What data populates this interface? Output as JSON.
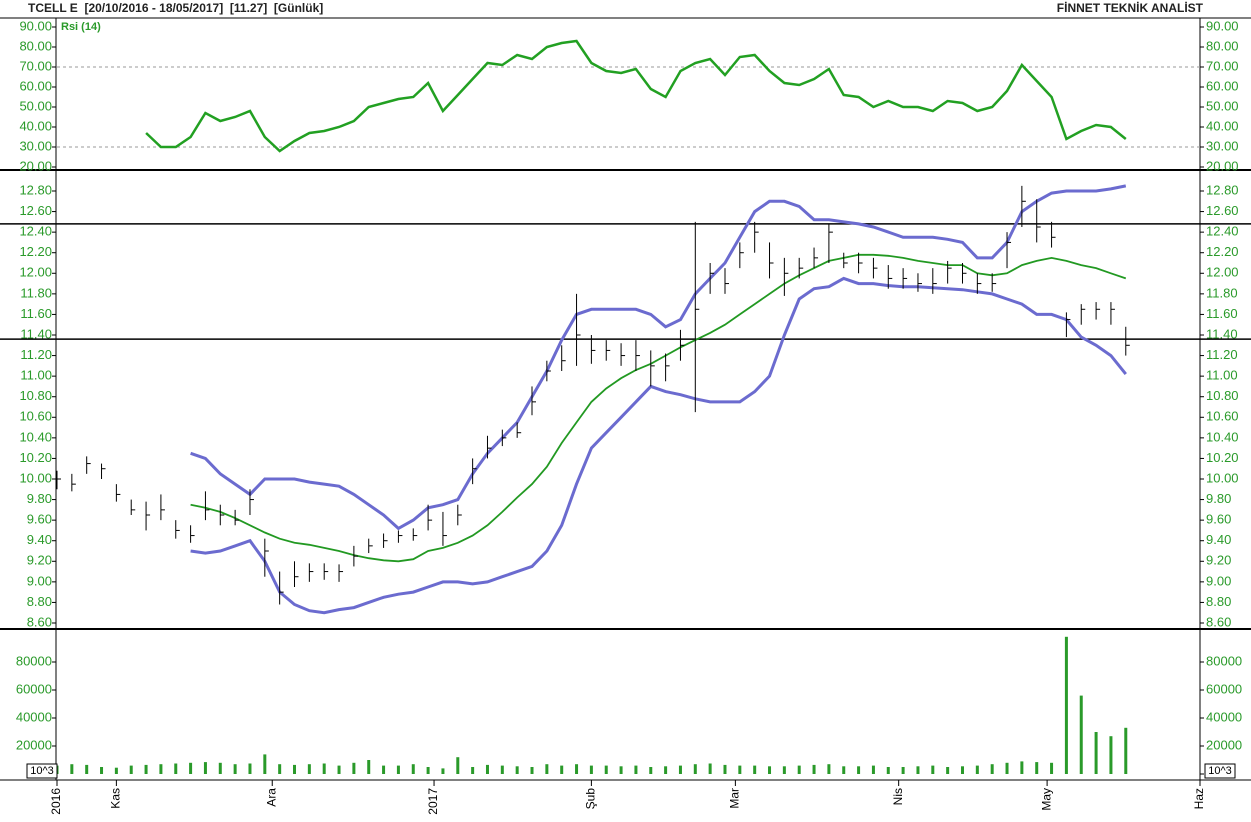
{
  "header": {
    "left": "TCELL E  [20/10/2016 - 18/05/2017]  [11.27]  [Günlük]",
    "right": "FİNNET TEKNİK ANALİST"
  },
  "x_axis": {
    "x": [
      0,
      1,
      2,
      3,
      4,
      5,
      6,
      7,
      8,
      9,
      10,
      11,
      12,
      13,
      14,
      15,
      16,
      17,
      18,
      19,
      20,
      21,
      22,
      23,
      24,
      25,
      26,
      27,
      28,
      29,
      30,
      31,
      32,
      33,
      34,
      35,
      36,
      37,
      38,
      39,
      40,
      41,
      42,
      43,
      44,
      45,
      46,
      47,
      48,
      49,
      50,
      51,
      52,
      53,
      54,
      55,
      56,
      57,
      58,
      59,
      60,
      61,
      62,
      63,
      64,
      65,
      66,
      67,
      68,
      69,
      70,
      71,
      72
    ],
    "xlim": [
      0,
      77
    ],
    "xticks": [
      {
        "value": 0,
        "label": "2016"
      },
      {
        "value": 4,
        "label": "Kas"
      },
      {
        "value": 14.5,
        "label": "Ara"
      },
      {
        "value": 25.4,
        "label": "2017"
      },
      {
        "value": 36,
        "label": "Şub"
      },
      {
        "value": 45.7,
        "label": "Mar"
      },
      {
        "value": 56.7,
        "label": "Nis"
      },
      {
        "value": 66.7,
        "label": "May"
      },
      {
        "value": 77,
        "label": "Haz"
      }
    ]
  },
  "chart_data": [
    {
      "type": "line",
      "label": "Rsi (14)",
      "color": "#22a022",
      "ylim": [
        20,
        90
      ],
      "yticks": [
        {
          "value": 20,
          "label": "20.00"
        },
        {
          "value": 30,
          "label": "30.00"
        },
        {
          "value": 40,
          "label": "40.00"
        },
        {
          "value": 50,
          "label": "50.00"
        },
        {
          "value": 60,
          "label": "60.00"
        },
        {
          "value": 70,
          "label": "70.00"
        },
        {
          "value": 80,
          "label": "80.00"
        },
        {
          "value": 90,
          "label": "90.00"
        }
      ],
      "dashed_levels": [
        30,
        70
      ],
      "values": [
        null,
        null,
        null,
        null,
        null,
        null,
        37,
        30,
        30,
        35,
        47,
        43,
        45,
        48,
        35,
        28,
        33,
        37,
        38,
        40,
        43,
        50,
        52,
        54,
        55,
        62,
        48,
        56,
        64,
        72,
        71,
        76,
        74,
        80,
        82,
        83,
        72,
        68,
        67,
        69,
        59,
        55,
        68,
        72,
        74,
        66,
        75,
        76,
        68,
        62,
        61,
        64,
        69,
        56,
        55,
        50,
        53,
        50,
        50,
        48,
        53,
        52,
        48,
        50,
        58,
        71,
        63,
        55,
        34,
        38,
        41,
        40,
        34
      ]
    },
    {
      "type": "ohlc",
      "color": "#000000",
      "ylim": [
        8.6,
        12.8
      ],
      "yticks": [
        {
          "value": 8.6,
          "label": "8.60"
        },
        {
          "value": 8.8,
          "label": "8.80"
        },
        {
          "value": 9.0,
          "label": "9.00"
        },
        {
          "value": 9.2,
          "label": "9.20"
        },
        {
          "value": 9.4,
          "label": "9.40"
        },
        {
          "value": 9.6,
          "label": "9.60"
        },
        {
          "value": 9.8,
          "label": "9.80"
        },
        {
          "value": 10.0,
          "label": "10.00"
        },
        {
          "value": 10.2,
          "label": "10.20"
        },
        {
          "value": 10.4,
          "label": "10.40"
        },
        {
          "value": 10.6,
          "label": "10.60"
        },
        {
          "value": 10.8,
          "label": "10.80"
        },
        {
          "value": 11.0,
          "label": "11.00"
        },
        {
          "value": 11.2,
          "label": "11.20"
        },
        {
          "value": 11.4,
          "label": "11.40"
        },
        {
          "value": 11.6,
          "label": "11.60"
        },
        {
          "value": 11.8,
          "label": "11.80"
        },
        {
          "value": 12.0,
          "label": "12.00"
        },
        {
          "value": 12.2,
          "label": "12.20"
        },
        {
          "value": 12.4,
          "label": "12.40"
        },
        {
          "value": 12.6,
          "label": "12.60"
        },
        {
          "value": 12.8,
          "label": "12.80"
        }
      ],
      "hlines": [
        12.48,
        11.36
      ],
      "high": [
        10.08,
        10.05,
        10.22,
        10.15,
        9.95,
        9.8,
        9.78,
        9.85,
        9.6,
        9.55,
        9.88,
        9.75,
        9.7,
        9.9,
        9.42,
        9.1,
        9.2,
        9.18,
        9.18,
        9.17,
        9.35,
        9.42,
        9.47,
        9.5,
        9.52,
        9.75,
        9.68,
        9.75,
        10.2,
        10.42,
        10.48,
        10.55,
        10.9,
        11.15,
        11.3,
        11.8,
        11.4,
        11.35,
        11.32,
        11.35,
        11.25,
        11.22,
        11.45,
        12.5,
        12.1,
        12.05,
        12.3,
        12.5,
        12.3,
        12.15,
        12.15,
        12.25,
        12.48,
        12.2,
        12.2,
        12.15,
        12.08,
        12.05,
        12.0,
        12.05,
        12.12,
        12.1,
        12.0,
        12.0,
        12.4,
        12.85,
        12.72,
        12.5,
        11.62,
        11.7,
        11.72,
        11.72,
        11.48
      ],
      "low": [
        9.9,
        9.88,
        10.05,
        10.0,
        9.78,
        9.65,
        9.5,
        9.6,
        9.42,
        9.38,
        9.6,
        9.55,
        9.55,
        9.65,
        9.05,
        8.78,
        8.95,
        9.0,
        9.02,
        9.0,
        9.15,
        9.28,
        9.33,
        9.38,
        9.4,
        9.5,
        9.35,
        9.55,
        9.95,
        10.2,
        10.32,
        10.4,
        10.62,
        10.95,
        11.05,
        11.1,
        11.12,
        11.15,
        11.1,
        11.05,
        10.9,
        10.95,
        11.15,
        10.65,
        11.8,
        11.8,
        12.05,
        12.2,
        11.95,
        11.78,
        11.95,
        12.05,
        12.1,
        12.05,
        12.0,
        11.95,
        11.85,
        11.85,
        11.82,
        11.8,
        11.9,
        11.9,
        11.8,
        11.82,
        12.05,
        12.45,
        12.3,
        12.25,
        11.38,
        11.5,
        11.55,
        11.5,
        11.2
      ],
      "close": [
        10.0,
        9.95,
        10.15,
        10.1,
        9.85,
        9.7,
        9.65,
        9.7,
        9.5,
        9.45,
        9.7,
        9.65,
        9.6,
        9.8,
        9.3,
        8.9,
        9.05,
        9.1,
        9.1,
        9.1,
        9.25,
        9.35,
        9.4,
        9.45,
        9.45,
        9.6,
        9.45,
        9.65,
        10.1,
        10.3,
        10.4,
        10.45,
        10.75,
        11.05,
        11.15,
        11.4,
        11.25,
        11.25,
        11.2,
        11.2,
        11.1,
        11.1,
        11.3,
        11.65,
        12.0,
        11.9,
        12.2,
        12.4,
        12.1,
        12.0,
        12.05,
        12.15,
        12.4,
        12.1,
        12.1,
        12.05,
        11.95,
        11.95,
        11.9,
        11.9,
        12.05,
        12.0,
        11.9,
        11.9,
        12.3,
        12.7,
        12.45,
        12.35,
        11.55,
        11.65,
        11.65,
        11.65,
        11.3
      ],
      "series": [
        {
          "color": "#6b6bcf",
          "values": [
            null,
            null,
            null,
            null,
            null,
            null,
            null,
            null,
            null,
            10.25,
            10.2,
            10.05,
            9.95,
            9.85,
            10.0,
            10.0,
            10.0,
            9.97,
            9.95,
            9.93,
            9.85,
            9.75,
            9.65,
            9.52,
            9.6,
            9.72,
            9.75,
            9.8,
            10.05,
            10.25,
            10.4,
            10.55,
            10.8,
            11.05,
            11.35,
            11.6,
            11.65,
            11.65,
            11.65,
            11.65,
            11.6,
            11.48,
            11.55,
            11.8,
            11.95,
            12.1,
            12.35,
            12.6,
            12.7,
            12.7,
            12.65,
            12.52,
            12.52,
            12.5,
            12.48,
            12.45,
            12.4,
            12.35,
            12.35,
            12.35,
            12.33,
            12.3,
            12.15,
            12.15,
            12.3,
            12.6,
            12.7,
            12.78,
            12.8,
            12.8,
            12.8,
            12.82,
            12.85
          ]
        },
        {
          "color": "#229922",
          "values": [
            null,
            null,
            null,
            null,
            null,
            null,
            null,
            null,
            null,
            9.75,
            9.72,
            9.68,
            9.62,
            9.55,
            9.48,
            9.42,
            9.38,
            9.36,
            9.33,
            9.3,
            9.26,
            9.23,
            9.21,
            9.2,
            9.22,
            9.3,
            9.33,
            9.38,
            9.45,
            9.55,
            9.68,
            9.82,
            9.95,
            10.12,
            10.35,
            10.55,
            10.75,
            10.88,
            10.98,
            11.06,
            11.12,
            11.2,
            11.28,
            11.35,
            11.42,
            11.5,
            11.6,
            11.7,
            11.8,
            11.9,
            11.98,
            12.05,
            12.12,
            12.15,
            12.18,
            12.18,
            12.17,
            12.15,
            12.12,
            12.1,
            12.08,
            12.08,
            12.0,
            11.98,
            12.0,
            12.08,
            12.12,
            12.15,
            12.12,
            12.08,
            12.05,
            12.0,
            11.95
          ]
        },
        {
          "color": "#6b6bcf",
          "values": [
            null,
            null,
            null,
            null,
            null,
            null,
            null,
            null,
            null,
            9.3,
            9.28,
            9.3,
            9.35,
            9.4,
            9.2,
            8.9,
            8.78,
            8.72,
            8.7,
            8.73,
            8.75,
            8.8,
            8.85,
            8.88,
            8.9,
            8.95,
            9.0,
            9.0,
            8.98,
            9.0,
            9.05,
            9.1,
            9.15,
            9.3,
            9.55,
            9.95,
            10.3,
            10.45,
            10.6,
            10.75,
            10.9,
            10.85,
            10.82,
            10.78,
            10.75,
            10.75,
            10.75,
            10.85,
            11.0,
            11.4,
            11.75,
            11.85,
            11.87,
            11.95,
            11.9,
            11.9,
            11.88,
            11.87,
            11.87,
            11.86,
            11.85,
            11.84,
            11.82,
            11.8,
            11.75,
            11.7,
            11.6,
            11.6,
            11.55,
            11.38,
            11.3,
            11.2,
            11.02
          ]
        }
      ]
    },
    {
      "type": "bar",
      "unit_label": "10^3",
      "color": "#2a9a2a",
      "ylim": [
        0,
        100000
      ],
      "yticks": [
        0,
        20000,
        40000,
        60000,
        80000
      ],
      "values": [
        6000,
        7000,
        6500,
        5000,
        4500,
        6000,
        6500,
        7000,
        7500,
        8000,
        8500,
        8000,
        7000,
        7500,
        14000,
        7000,
        6500,
        7000,
        7500,
        6000,
        8000,
        10000,
        6000,
        6000,
        7000,
        5000,
        4000,
        12000,
        5000,
        6500,
        6000,
        5500,
        5000,
        7000,
        6000,
        7000,
        6000,
        6000,
        5500,
        6000,
        5000,
        5500,
        6000,
        7000,
        7500,
        6500,
        6000,
        6000,
        5500,
        5500,
        6000,
        6500,
        7000,
        5500,
        5500,
        6000,
        5000,
        5000,
        5500,
        6000,
        5000,
        5500,
        6000,
        7000,
        8000,
        9000,
        8500,
        8000,
        98000,
        56000,
        30000,
        27000,
        33000
      ]
    }
  ]
}
